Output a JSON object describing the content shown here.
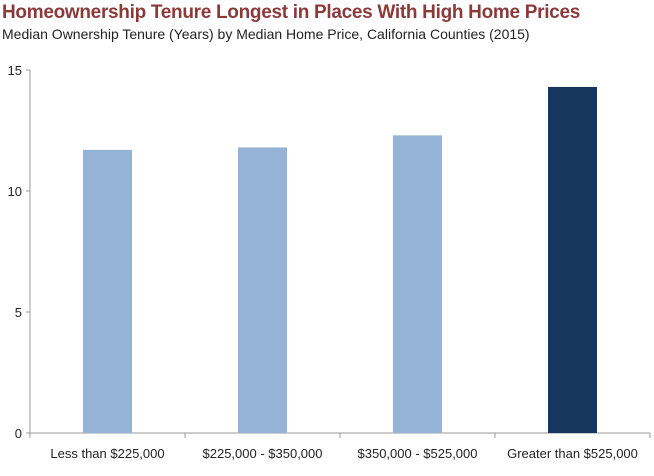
{
  "chart_data": {
    "type": "bar",
    "title": "Homeownership Tenure Longest in Places With High Home Prices",
    "subtitle": "Median Ownership Tenure (Years) by Median Home Price, California Counties (2015)",
    "categories": [
      "Less than $225,000",
      "$225,000 - $350,000",
      "$350,000 - $525,000",
      "Greater than $525,000"
    ],
    "values": [
      11.7,
      11.8,
      12.3,
      14.3
    ],
    "colors": [
      "#95b3d7",
      "#95b3d7",
      "#95b3d7",
      "#17375e"
    ],
    "xlabel": "",
    "ylabel": "",
    "ylim": [
      0,
      15
    ],
    "yticks": [
      0,
      5,
      10,
      15
    ],
    "grid": false,
    "legend": "none"
  }
}
